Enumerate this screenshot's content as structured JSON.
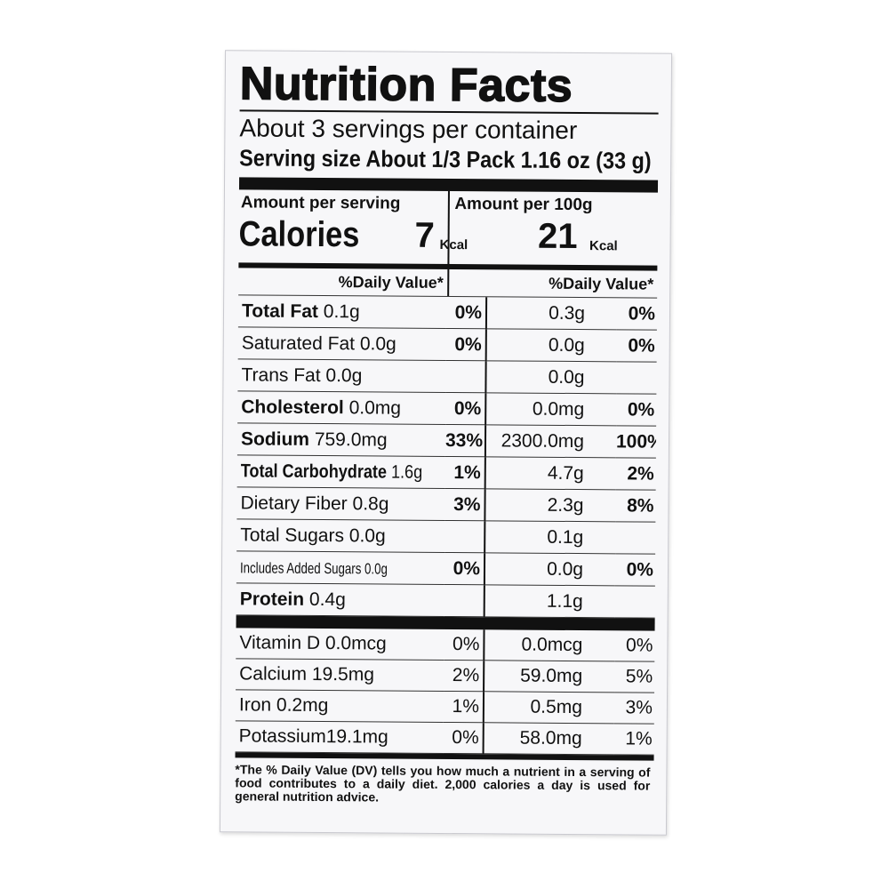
{
  "title": "Nutrition Facts",
  "servings": "About 3 servings per container",
  "serving_size": "Serving size  About 1/3 Pack 1.16 oz (33 g)",
  "calories": {
    "amount_per_serving_label": "Amount per serving",
    "amount_per_100g_label": "Amount per 100g",
    "label": "Calories",
    "per_serving": "7",
    "per_100g": "21",
    "unit": "Kcal"
  },
  "dv_header": "%Daily Value*",
  "nutrients": [
    {
      "name": "Total Fat",
      "amount": "0.1g",
      "dv": "0%",
      "amount_100g": "0.3g",
      "dv_100g": "0%"
    },
    {
      "name": "Saturated Fat",
      "amount": "0.0g",
      "dv": "0%",
      "amount_100g": "0.0g",
      "dv_100g": "0%"
    },
    {
      "name": "Trans Fat",
      "amount": "0.0g",
      "dv": "",
      "amount_100g": "0.0g",
      "dv_100g": ""
    },
    {
      "name": "Cholesterol",
      "amount": "0.0mg",
      "dv": "0%",
      "amount_100g": "0.0mg",
      "dv_100g": "0%"
    },
    {
      "name": "Sodium",
      "amount": "759.0mg",
      "dv": "33%",
      "amount_100g": "2300.0mg",
      "dv_100g": "100%"
    },
    {
      "name": "Total Carbohydrate",
      "amount": "1.6g",
      "dv": "1%",
      "amount_100g": "4.7g",
      "dv_100g": "2%"
    },
    {
      "name": "Dietary Fiber",
      "amount": "0.8g",
      "dv": "3%",
      "amount_100g": "2.3g",
      "dv_100g": "8%"
    },
    {
      "name": "Total Sugars",
      "amount": "0.0g",
      "dv": "",
      "amount_100g": "0.1g",
      "dv_100g": ""
    },
    {
      "name": "Includes Added Sugars",
      "amount": "0.0g",
      "dv": "0%",
      "amount_100g": "0.0g",
      "dv_100g": "0%"
    },
    {
      "name": "Protein",
      "amount": "0.4g",
      "dv": "",
      "amount_100g": "1.1g",
      "dv_100g": ""
    }
  ],
  "vitamins": [
    {
      "name": "Vitamin D",
      "amount": "0.0mcg",
      "dv": "0%",
      "amount_100g": "0.0mcg",
      "dv_100g": "0%"
    },
    {
      "name": "Calcium",
      "amount": "19.5mg",
      "dv": "2%",
      "amount_100g": "59.0mg",
      "dv_100g": "5%"
    },
    {
      "name": "Iron",
      "amount": "0.2mg",
      "dv": "1%",
      "amount_100g": "0.5mg",
      "dv_100g": "3%"
    },
    {
      "name": "Potassium",
      "amount": "19.1mg",
      "dv": "0%",
      "amount_100g": "58.0mg",
      "dv_100g": "1%"
    }
  ],
  "footnote": "*The % Daily Value (DV) tells you how much a nutrient in a serving of food contributes to a daily diet. 2,000 calories a day is used for general nutrition advice."
}
